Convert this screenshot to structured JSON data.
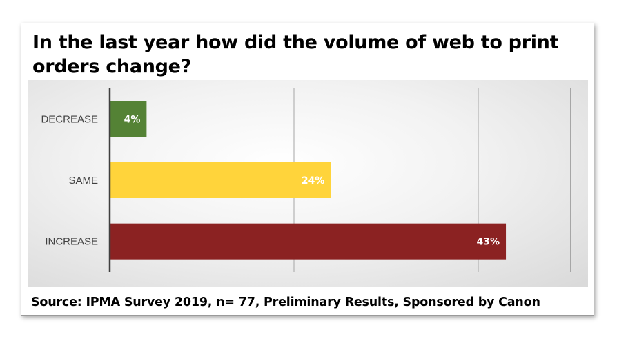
{
  "title": "In the last year how did the volume of web to print orders change?",
  "source": "Source: IPMA Survey 2019, n= 77, Preliminary Results, Sponsored by Canon",
  "chart_data": {
    "type": "bar",
    "orientation": "horizontal",
    "categories": [
      "DECREASE",
      "SAME",
      "INCREASE"
    ],
    "values": [
      4,
      24,
      43
    ],
    "data_labels": [
      "4%",
      "24%",
      "43%"
    ],
    "colors": [
      "#548235",
      "#FFD43B",
      "#8B2222"
    ],
    "xlim": [
      0,
      50
    ],
    "grid": true,
    "legend": "none",
    "title": "In the last year how did the volume of web to print orders change?"
  }
}
